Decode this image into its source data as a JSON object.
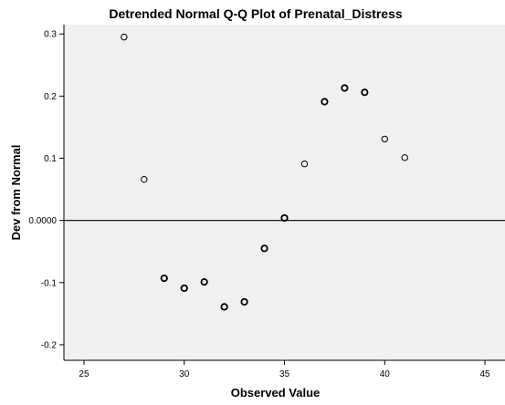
{
  "chart_data": {
    "type": "scatter",
    "title": "Detrended Normal Q-Q Plot of Prenatal_Distress",
    "xlabel": "Observed Value",
    "ylabel": "Dev from Normal",
    "xlim": [
      24,
      46
    ],
    "ylim": [
      -0.225,
      0.315
    ],
    "x_ticks": [
      25,
      30,
      35,
      40,
      45
    ],
    "x_tick_labels": [
      "25",
      "30",
      "35",
      "40",
      "45"
    ],
    "y_ticks": [
      -0.2,
      -0.1,
      0.0,
      0.1,
      0.2,
      0.3
    ],
    "y_tick_labels": [
      "-0.2",
      "-0.1",
      "0.0000",
      "0.1",
      "0.2",
      "0.3"
    ],
    "reference_line_y": 0,
    "grid": false,
    "colors": {
      "plot_background": "#f0f0f0",
      "marker_stroke": "#000000",
      "axis": "#000000",
      "reference_line": "#000000"
    },
    "points": [
      {
        "x": 27,
        "y": 0.295,
        "emphasis": false
      },
      {
        "x": 28,
        "y": 0.066,
        "emphasis": false
      },
      {
        "x": 29,
        "y": -0.093,
        "emphasis": true
      },
      {
        "x": 30,
        "y": -0.109,
        "emphasis": true
      },
      {
        "x": 31,
        "y": -0.099,
        "emphasis": true
      },
      {
        "x": 32,
        "y": -0.139,
        "emphasis": true
      },
      {
        "x": 33,
        "y": -0.131,
        "emphasis": true
      },
      {
        "x": 34,
        "y": -0.045,
        "emphasis": true
      },
      {
        "x": 35,
        "y": 0.004,
        "emphasis": true
      },
      {
        "x": 36,
        "y": 0.091,
        "emphasis": false
      },
      {
        "x": 37,
        "y": 0.191,
        "emphasis": true
      },
      {
        "x": 38,
        "y": 0.213,
        "emphasis": true
      },
      {
        "x": 39,
        "y": 0.206,
        "emphasis": true
      },
      {
        "x": 40,
        "y": 0.131,
        "emphasis": false
      },
      {
        "x": 41,
        "y": 0.101,
        "emphasis": false
      }
    ]
  }
}
